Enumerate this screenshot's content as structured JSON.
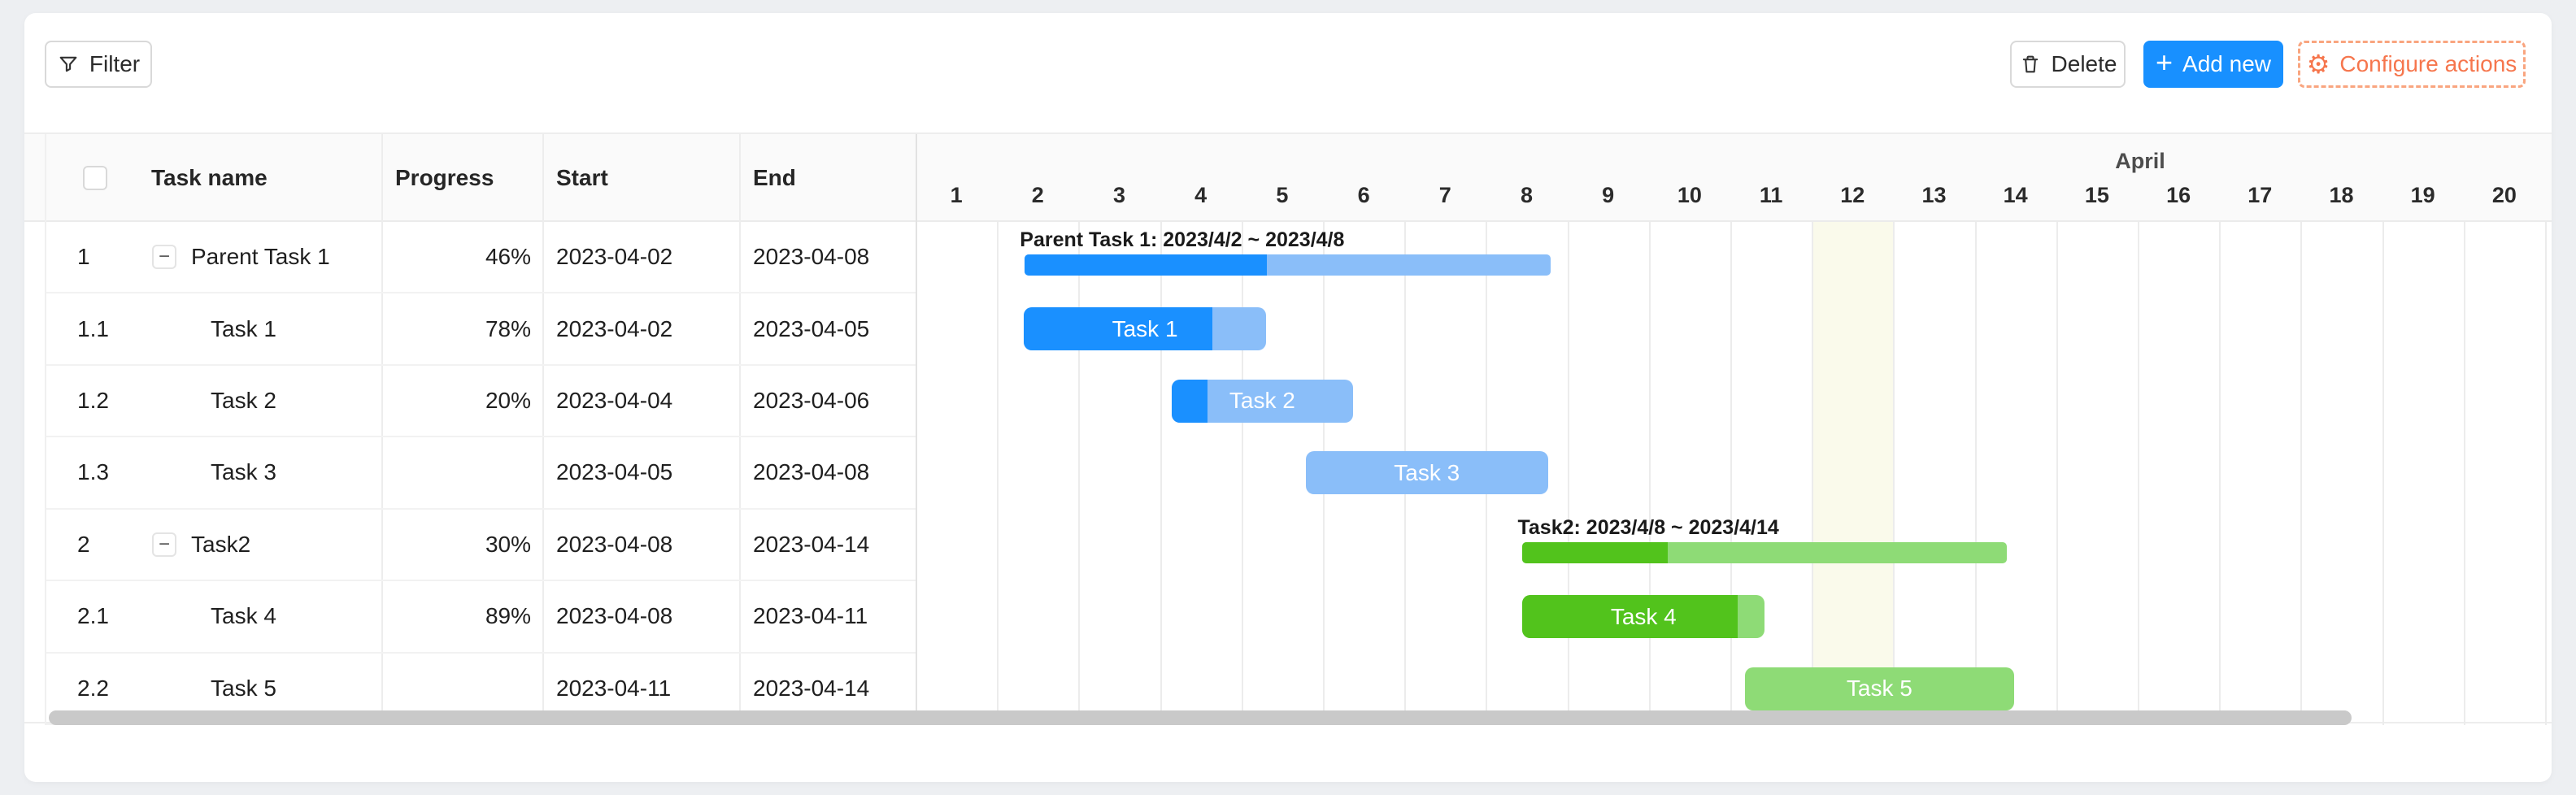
{
  "toolbar": {
    "filter_label": "Filter",
    "delete_label": "Delete",
    "add_new_label": "Add new",
    "add_new_plus": "+",
    "configure_label": "Configure actions",
    "gear_glyph": "⚙",
    "minus_glyph": "−"
  },
  "table": {
    "columns": {
      "task_name": "Task name",
      "progress": "Progress",
      "start": "Start",
      "end": "End"
    }
  },
  "timeline": {
    "month": "April",
    "days": [
      1,
      2,
      3,
      4,
      5,
      6,
      7,
      8,
      9,
      10,
      11,
      12,
      13,
      14,
      15,
      16,
      17,
      18,
      19,
      20
    ],
    "today_day": 12
  },
  "colors": {
    "accent_blue": "#1890ff",
    "bar_blue": "#1a90ff",
    "bar_blue_light": "#8abef9",
    "bar_green": "#52c31c",
    "bar_green_light": "#8edb76",
    "configure_orange": "#f6764d",
    "today_highlight": "#fafaeb"
  },
  "chart_data": {
    "type": "gantt",
    "month": "April",
    "visible_day_range": [
      1,
      20
    ],
    "today_day": 12,
    "tasks": [
      {
        "id": "1",
        "name": "Parent Task 1",
        "start": "2023-04-02",
        "end": "2023-04-08",
        "progress": 46,
        "kind": "parent",
        "scheme": "blue",
        "row": 1,
        "bar_start_day": 2.34,
        "bar_end_day": 8.79,
        "bar_label": "Parent Task 1: 2023/4/2 ~ 2023/4/8"
      },
      {
        "id": "1.1",
        "name": "Task 1",
        "start": "2023-04-02",
        "end": "2023-04-05",
        "progress": 78,
        "kind": "child",
        "scheme": "blue",
        "row": 2,
        "bar_start_day": 2.33,
        "bar_end_day": 5.3,
        "bar_text": "Task 1"
      },
      {
        "id": "1.2",
        "name": "Task 2",
        "start": "2023-04-04",
        "end": "2023-04-06",
        "progress": 20,
        "kind": "child",
        "scheme": "blue",
        "row": 3,
        "bar_start_day": 4.14,
        "bar_end_day": 6.37,
        "bar_text": "Task 2"
      },
      {
        "id": "1.3",
        "name": "Task 3",
        "start": "2023-04-05",
        "end": "2023-04-08",
        "progress": null,
        "kind": "child",
        "scheme": "blue",
        "row": 4,
        "bar_start_day": 5.79,
        "bar_end_day": 8.76,
        "bar_text": "Task 3"
      },
      {
        "id": "2",
        "name": "Task2",
        "start": "2023-04-08",
        "end": "2023-04-14",
        "progress": 30,
        "kind": "parent",
        "scheme": "green",
        "row": 5,
        "bar_start_day": 8.45,
        "bar_end_day": 14.39,
        "bar_label": "Task2: 2023/4/8 ~ 2023/4/14"
      },
      {
        "id": "2.1",
        "name": "Task 4",
        "start": "2023-04-08",
        "end": "2023-04-11",
        "progress": 89,
        "kind": "child",
        "scheme": "green",
        "row": 6,
        "bar_start_day": 8.45,
        "bar_end_day": 11.42,
        "bar_text": "Task 4"
      },
      {
        "id": "2.2",
        "name": "Task 5",
        "start": "2023-04-11",
        "end": "2023-04-14",
        "progress": null,
        "kind": "child",
        "scheme": "green",
        "row": 7,
        "bar_start_day": 11.18,
        "bar_end_day": 14.48,
        "bar_text": "Task 5"
      }
    ]
  }
}
